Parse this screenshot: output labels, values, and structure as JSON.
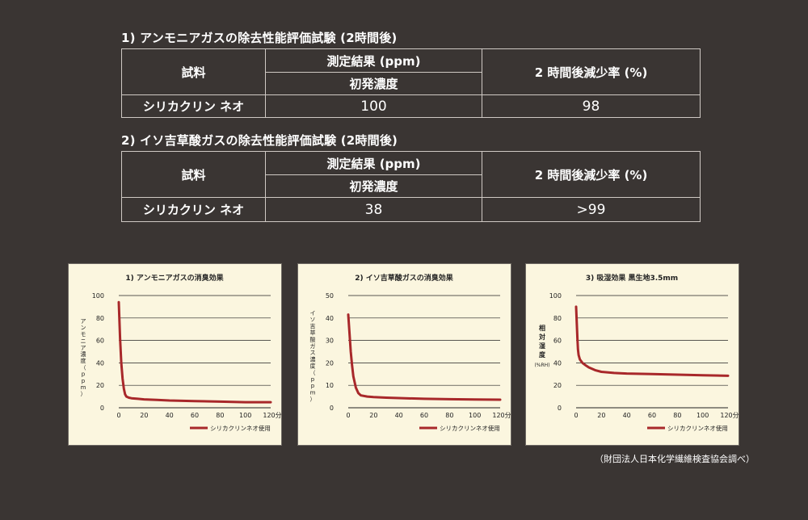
{
  "tables": [
    {
      "title": "1) アンモニアガスの除去性能評価試験 (2時間後)",
      "header_sample": "試料",
      "header_result": "測定結果 (ppm)",
      "header_initial": "初発濃度",
      "header_rate": "2 時間後減少率 (%)",
      "row_name": "シリカクリン ネオ",
      "row_initial": "100",
      "row_rate": "98"
    },
    {
      "title": "2) イソ吉草酸ガスの除去性能評価試験 (2時間後)",
      "header_sample": "試料",
      "header_result": "測定結果 (ppm)",
      "header_initial": "初発濃度",
      "header_rate": "2 時間後減少率 (%)",
      "row_name": "シリカクリン ネオ",
      "row_initial": "38",
      "row_rate": ">99"
    }
  ],
  "colors": {
    "background": "#3a3533",
    "panel": "#fbf6df",
    "line": "#a8282a",
    "text": "#ffffff"
  },
  "chart_data": [
    {
      "type": "line",
      "title": "1) アンモニアガスの消臭効果",
      "ylabel": "アンモニア濃度（ppm）",
      "x_ticks": [
        "0",
        "20",
        "40",
        "60",
        "80",
        "100",
        "120分後"
      ],
      "y_ticks": [
        "0",
        "20",
        "40",
        "60",
        "80",
        "100"
      ],
      "xlim": [
        0,
        120
      ],
      "ylim": [
        0,
        100
      ],
      "grid": true,
      "legend": "bottom-right",
      "series": [
        {
          "name": "シリカクリンネオ使用",
          "x": [
            0,
            1,
            2,
            3,
            4,
            5,
            6,
            8,
            10,
            15,
            20,
            30,
            40,
            60,
            80,
            100,
            120
          ],
          "y": [
            94,
            62,
            40,
            26,
            17,
            12,
            10,
            9,
            8.5,
            8,
            7.5,
            7,
            6.5,
            6,
            5.5,
            5,
            5
          ]
        }
      ]
    },
    {
      "type": "line",
      "title": "2) イソ吉草酸ガスの消臭効果",
      "ylabel": "イソ吉草酸ガス濃度（ppm）",
      "x_ticks": [
        "0",
        "20",
        "40",
        "60",
        "80",
        "100",
        "120分後"
      ],
      "y_ticks": [
        "0",
        "10",
        "20",
        "30",
        "40",
        "50"
      ],
      "xlim": [
        0,
        120
      ],
      "ylim": [
        0,
        50
      ],
      "grid": true,
      "legend": "bottom-right",
      "series": [
        {
          "name": "シリカクリンネオ使用",
          "x": [
            0,
            1,
            2,
            3,
            4,
            6,
            8,
            10,
            15,
            20,
            30,
            40,
            60,
            80,
            100,
            120
          ],
          "y": [
            41.5,
            33,
            25,
            19,
            14,
            9,
            6.5,
            5.5,
            5,
            4.8,
            4.5,
            4.3,
            4,
            3.8,
            3.7,
            3.6
          ]
        }
      ]
    },
    {
      "type": "line",
      "title": "3) 吸湿効果 黒生地3.5mm",
      "ylabel": "相対湿度",
      "yunit": "(%RH)",
      "x_ticks": [
        "0",
        "20",
        "40",
        "60",
        "80",
        "100",
        "120分後"
      ],
      "y_ticks": [
        "0",
        "20",
        "40",
        "60",
        "80",
        "100"
      ],
      "xlim": [
        0,
        120
      ],
      "ylim": [
        0,
        100
      ],
      "grid": true,
      "legend": "bottom-right",
      "series": [
        {
          "name": "シリカクリンネオ使用",
          "x": [
            0,
            0.5,
            1,
            1.5,
            2,
            3,
            5,
            8,
            10,
            15,
            20,
            30,
            40,
            60,
            80,
            100,
            120
          ],
          "y": [
            90,
            76,
            62,
            52,
            47,
            43,
            40,
            37.5,
            36,
            33.5,
            32,
            31,
            30.5,
            30,
            29.5,
            29,
            28.5
          ]
        }
      ]
    }
  ],
  "footnote": "（財団法人日本化学繊維検査協会調べ）"
}
